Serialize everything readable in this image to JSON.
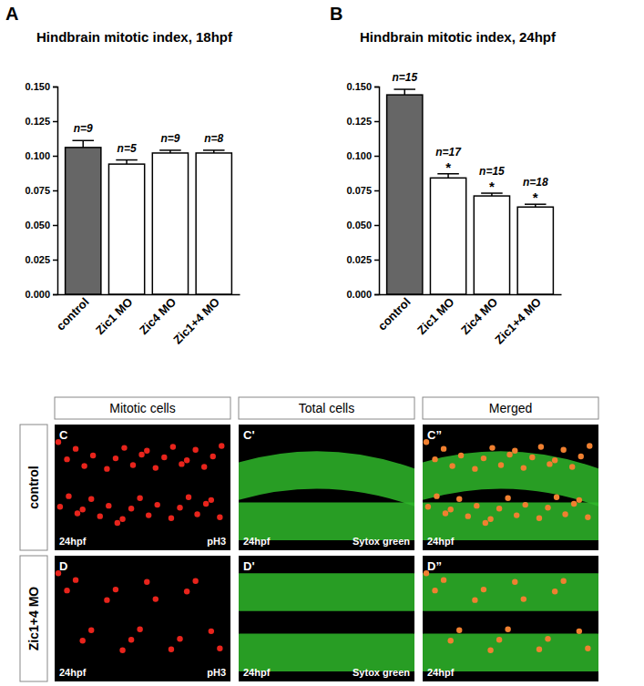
{
  "chart_data": [
    {
      "type": "bar",
      "panel_label": "A",
      "title": "Hindbrain mitotic index, 18hpf",
      "categories": [
        "control",
        "Zic1 MO",
        "Zic4 MO",
        "Zic1+4 MO"
      ],
      "values": [
        0.106,
        0.094,
        0.102,
        0.102
      ],
      "errors": [
        0.005,
        0.003,
        0.002,
        0.002
      ],
      "n_labels": [
        "n=9",
        "n=5",
        "n=9",
        "n=8"
      ],
      "colors": [
        "#666666",
        "#ffffff",
        "#ffffff",
        "#ffffff"
      ],
      "ylim": [
        0,
        0.15
      ],
      "yticks": [
        {
          "value": 0,
          "label": "0.000"
        },
        {
          "value": 0.025,
          "label": "0.025"
        },
        {
          "value": 0.05,
          "label": "0.050"
        },
        {
          "value": 0.075,
          "label": "0.075"
        },
        {
          "value": 0.1,
          "label": "0.100"
        },
        {
          "value": 0.125,
          "label": "0.125"
        },
        {
          "value": 0.15,
          "label": "0.150"
        }
      ],
      "grid": false
    },
    {
      "type": "bar",
      "panel_label": "B",
      "title": "Hindbrain mitotic index, 24hpf",
      "categories": [
        "control",
        "Zic1 MO",
        "Zic4 MO",
        "Zic1+4 MO"
      ],
      "values": [
        0.144,
        0.084,
        0.071,
        0.063
      ],
      "errors": [
        0.004,
        0.003,
        0.002,
        0.002
      ],
      "n_labels": [
        "n=15",
        "n=17",
        "n=15",
        "n=18"
      ],
      "significance": [
        null,
        "*",
        "*",
        "*"
      ],
      "colors": [
        "#666666",
        "#ffffff",
        "#ffffff",
        "#ffffff"
      ],
      "ylim": [
        0,
        0.15
      ],
      "yticks": [
        {
          "value": 0,
          "label": "0.000"
        },
        {
          "value": 0.025,
          "label": "0.025"
        },
        {
          "value": 0.05,
          "label": "0.050"
        },
        {
          "value": 0.075,
          "label": "0.075"
        },
        {
          "value": 0.1,
          "label": "0.100"
        },
        {
          "value": 0.125,
          "label": "0.125"
        },
        {
          "value": 0.15,
          "label": "0.150"
        }
      ],
      "grid": false
    }
  ],
  "image_panels": {
    "columns": [
      "Mitotic cells",
      "Total cells",
      "Merged"
    ],
    "rows": [
      {
        "label": "control",
        "panels": [
          {
            "letter": "C",
            "stage": "24hpf",
            "stain": "pH3"
          },
          {
            "letter": "C'",
            "stage": "24hpf",
            "stain": "Sytox green"
          },
          {
            "letter": "C”",
            "stage": "24hpf"
          }
        ]
      },
      {
        "label": "Zic1+4 MO",
        "panels": [
          {
            "letter": "D",
            "stage": "24hpf",
            "stain": "pH3"
          },
          {
            "letter": "D'",
            "stage": "24hpf",
            "stain": "Sytox green"
          },
          {
            "letter": "D”",
            "stage": "24hpf"
          }
        ]
      }
    ]
  }
}
